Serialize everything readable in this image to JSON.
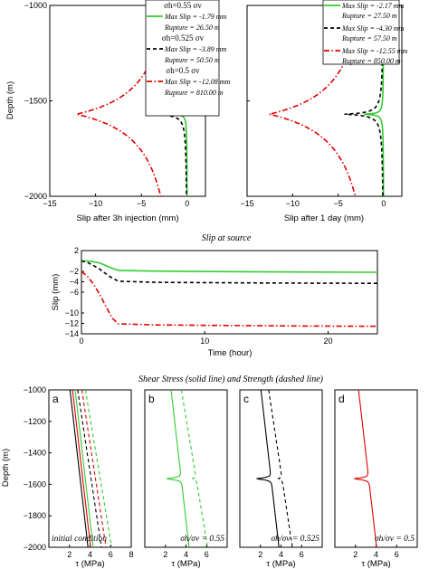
{
  "colors": {
    "green": "#33cc33",
    "black": "#000000",
    "red": "#e00000"
  },
  "chart_data": [
    {
      "id": "slip_3h",
      "type": "line",
      "xlabel": "Slip after 3h injection (mm)",
      "ylabel": "Depth (m)",
      "xlim": [
        -15,
        2
      ],
      "ylim": [
        -2000,
        -1000
      ],
      "xticks": [
        -15,
        -10,
        -5,
        0
      ],
      "yticks": [
        -2000,
        -1500,
        -1000
      ],
      "legend": [
        {
          "header": "σh=0.55 σv",
          "maxslip": "Max Slip = -1.79 mm",
          "rupture": "Rupture =  26.50  m",
          "color": "green",
          "dash": "solid"
        },
        {
          "header": "σh=0.525 σv",
          "maxslip": "Max Slip = -3.89 mm",
          "rupture": "Rupture =  50.50 m",
          "color": "black",
          "dash": "dashed"
        },
        {
          "header": "σh=0.5 σv",
          "maxslip": "Max Slip = -12.08 mm",
          "rupture": "Rupture =  810.00 m",
          "color": "red",
          "dash": "dashdot"
        }
      ],
      "series": [
        {
          "peak": -1.79,
          "halfwidth": 26.5,
          "color": "green"
        },
        {
          "peak": -3.89,
          "halfwidth": 50.5,
          "color": "black"
        },
        {
          "peak": -12.08,
          "halfwidth": 810.0,
          "color": "red"
        }
      ]
    },
    {
      "id": "slip_1day",
      "type": "line",
      "xlabel": "Slip after 1 day (mm)",
      "xlim": [
        -15,
        2
      ],
      "ylim": [
        -2000,
        -1000
      ],
      "xticks": [
        -15,
        -10,
        -5,
        0
      ],
      "yticks": [
        -2000,
        -1500,
        -1000
      ],
      "legend": [
        {
          "maxslip": "Max Slip = -2.17 mm",
          "rupture": "Rupture =  27.50 m",
          "color": "green",
          "dash": "solid"
        },
        {
          "maxslip": "Max Slip = -4.30 mm",
          "rupture": "Rupture =  57.50 m",
          "color": "black",
          "dash": "dashed"
        },
        {
          "maxslip": "Max Slip = -12.55 mm",
          "rupture": "Rupture =  850.00 m",
          "color": "red",
          "dash": "dashdot"
        }
      ],
      "series": [
        {
          "peak": -2.17,
          "halfwidth": 27.5,
          "color": "green"
        },
        {
          "peak": -4.3,
          "halfwidth": 57.5,
          "color": "black"
        },
        {
          "peak": -12.55,
          "halfwidth": 850.0,
          "color": "red"
        }
      ]
    },
    {
      "id": "slip_source",
      "type": "line",
      "title": "Slip at source",
      "xlabel": "Time (hour)",
      "ylabel": "Slip (mm)",
      "xlim": [
        0,
        24
      ],
      "ylim": [
        -14,
        2
      ],
      "xticks": [
        0,
        10,
        20
      ],
      "yticks": [
        -14,
        -12,
        -10,
        -6,
        -4,
        -2,
        2
      ],
      "series": [
        {
          "color": "green",
          "dash": "solid",
          "x": [
            0,
            0.5,
            1,
            1.5,
            2,
            2.5,
            3,
            6,
            12,
            18,
            24
          ],
          "y": [
            0,
            0,
            -0.15,
            -0.4,
            -0.9,
            -1.4,
            -1.8,
            -1.95,
            -2.05,
            -2.12,
            -2.17
          ]
        },
        {
          "color": "black",
          "dash": "dashed",
          "x": [
            0,
            0.5,
            1,
            1.5,
            2,
            2.5,
            3,
            6,
            12,
            18,
            24
          ],
          "y": [
            0,
            -0.3,
            -0.9,
            -1.6,
            -2.5,
            -3.3,
            -3.9,
            -4.1,
            -4.2,
            -4.26,
            -4.3
          ]
        },
        {
          "color": "red",
          "dash": "dashdot",
          "x": [
            0,
            0.5,
            1,
            1.5,
            2,
            2.5,
            3,
            6,
            12,
            18,
            24
          ],
          "y": [
            -2,
            -3.0,
            -4.5,
            -6.5,
            -8.8,
            -11.0,
            -12.08,
            -12.3,
            -12.4,
            -12.5,
            -12.55
          ]
        }
      ]
    },
    {
      "id": "stress",
      "type": "line",
      "title": "Shear Stress (solid line) and Strength (dashed line)",
      "ylabel": "Depth (m)",
      "xlabel": "τ (MPa)",
      "ylim": [
        -2000,
        -1000
      ],
      "yticks": [
        -2000,
        -1800,
        -1600,
        -1400,
        -1200,
        -1000
      ],
      "panels": [
        {
          "letter": "a",
          "note": "initial condition",
          "xlim": [
            0,
            8
          ],
          "xticks": [
            2,
            4,
            6,
            8
          ],
          "lines": [
            {
              "color": "black",
              "dash": "solid",
              "top": 2.05,
              "bottom": 3.8
            },
            {
              "color": "red",
              "dash": "solid",
              "top": 2.3,
              "bottom": 4.05
            },
            {
              "color": "green",
              "dash": "solid",
              "top": 2.55,
              "bottom": 4.3
            },
            {
              "color": "black",
              "dash": "dashed",
              "top": 2.8,
              "bottom": 5.1
            },
            {
              "color": "red",
              "dash": "dashed",
              "top": 3.2,
              "bottom": 5.55
            },
            {
              "color": "green",
              "dash": "dashed",
              "top": 3.55,
              "bottom": 6.1
            }
          ]
        },
        {
          "letter": "b",
          "note": "σh/σv = 0.55",
          "xlim": [
            0,
            8
          ],
          "xticks": [
            2,
            4,
            6
          ],
          "lines": [
            {
              "color": "green",
              "dash": "solid",
              "top": 2.55,
              "bottom": 4.3,
              "dip": -1.6
            },
            {
              "color": "green",
              "dash": "dashed",
              "top": 3.55,
              "bottom": 6.1,
              "dip": -0.4
            }
          ]
        },
        {
          "letter": "c",
          "note": "σh/σv = 0.525",
          "xlim": [
            0,
            8
          ],
          "xticks": [
            2,
            4,
            6
          ],
          "lines": [
            {
              "color": "black",
              "dash": "solid",
              "top": 2.05,
              "bottom": 3.8,
              "dip": -1.6
            },
            {
              "color": "black",
              "dash": "dashed",
              "top": 2.8,
              "bottom": 5.1,
              "dip": -0.4
            }
          ]
        },
        {
          "letter": "d",
          "note": "σh/σv = 0.5",
          "xlim": [
            0,
            8
          ],
          "xticks": [
            2,
            4,
            6
          ],
          "lines": [
            {
              "color": "red",
              "dash": "solid",
              "top": 2.3,
              "bottom": 4.05,
              "dip": -1.6
            }
          ]
        }
      ]
    }
  ]
}
